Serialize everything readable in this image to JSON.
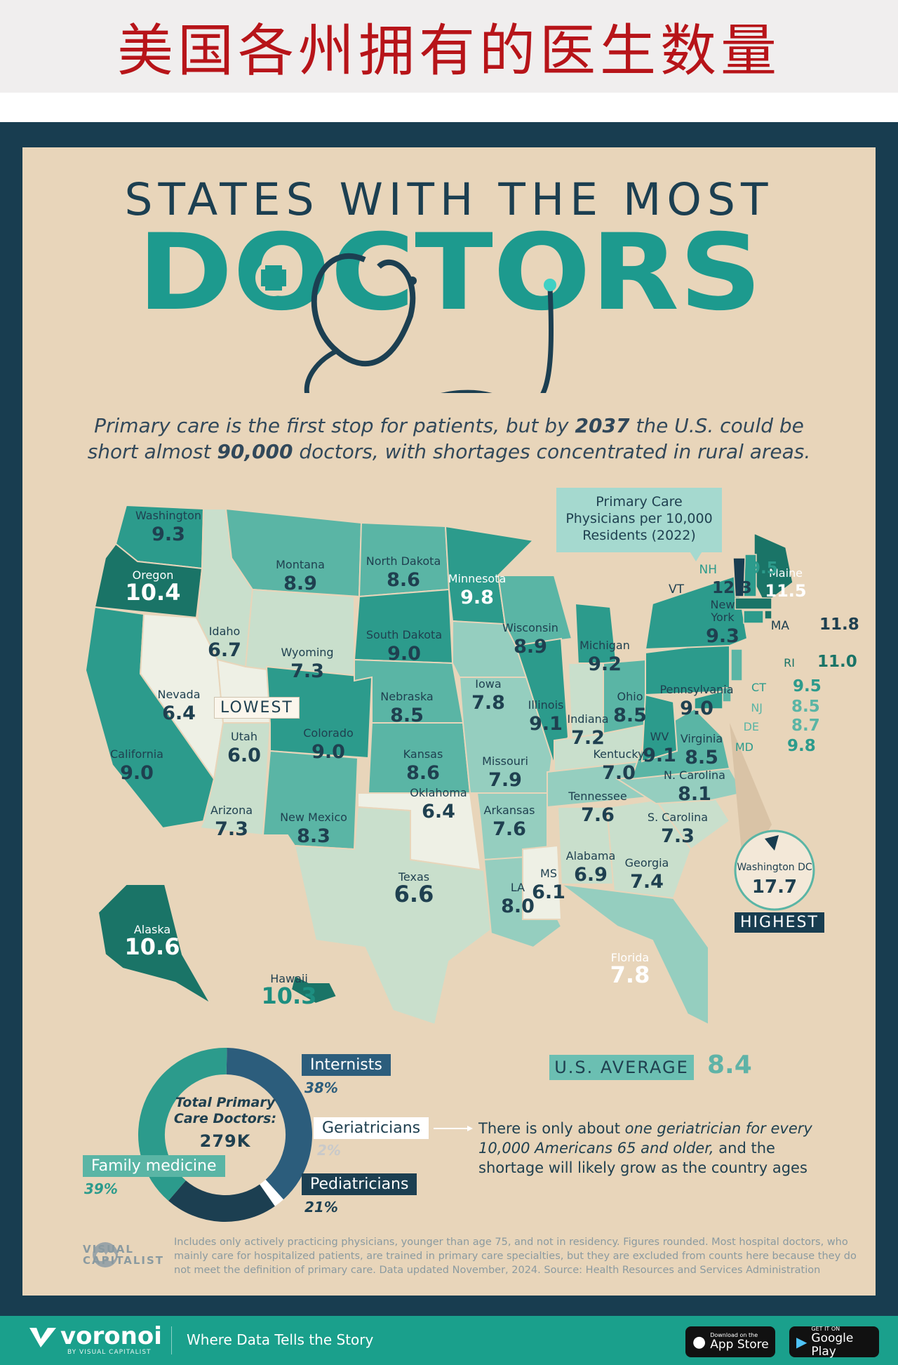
{
  "banner_title": "美国各州拥有的医生数量",
  "headline": "STATES WITH THE MOST",
  "big_word": "DOCTORS",
  "subtitle": {
    "part1": "Primary care is the first stop for patients, but by ",
    "year": "2037",
    "part2": " the U.S. could be",
    "part3": "short almost ",
    "number": "90,000",
    "part4": " doctors, with shortages concentrated in rural areas."
  },
  "legend": {
    "line1": "Primary Care",
    "line2": "Physicians per 10,000",
    "line3": "Residents (2022)"
  },
  "colors": {
    "lightest": "#eef0e5",
    "light": "#c9dfcc",
    "mid_light": "#95cebf",
    "mid": "#5ab5a5",
    "mid_dark": "#2c9b8c",
    "dark": "#1a7467",
    "darkest": "#183d50"
  },
  "states": [
    {
      "name": "Washington",
      "value": "9.3"
    },
    {
      "name": "Oregon",
      "value": "10.4"
    },
    {
      "name": "California",
      "value": "9.0"
    },
    {
      "name": "Idaho",
      "value": "6.7"
    },
    {
      "name": "Nevada",
      "value": "6.4"
    },
    {
      "name": "Utah",
      "value": "6.0"
    },
    {
      "name": "Arizona",
      "value": "7.3"
    },
    {
      "name": "Montana",
      "value": "8.9"
    },
    {
      "name": "Wyoming",
      "value": "7.3"
    },
    {
      "name": "Colorado",
      "value": "9.0"
    },
    {
      "name": "New Mexico",
      "value": "8.3"
    },
    {
      "name": "North Dakota",
      "value": "8.6"
    },
    {
      "name": "South Dakota",
      "value": "9.0"
    },
    {
      "name": "Nebraska",
      "value": "8.5"
    },
    {
      "name": "Kansas",
      "value": "8.6"
    },
    {
      "name": "Oklahoma",
      "value": "6.4"
    },
    {
      "name": "Texas",
      "value": "6.6"
    },
    {
      "name": "Minnesota",
      "value": "9.8"
    },
    {
      "name": "Iowa",
      "value": "7.8"
    },
    {
      "name": "Missouri",
      "value": "7.9"
    },
    {
      "name": "Arkansas",
      "value": "7.6"
    },
    {
      "name": "LA",
      "value": "8.0"
    },
    {
      "name": "Wisconsin",
      "value": "8.9"
    },
    {
      "name": "Illinois",
      "value": "9.1"
    },
    {
      "name": "MS",
      "value": "6.1"
    },
    {
      "name": "Michigan",
      "value": "9.2"
    },
    {
      "name": "Indiana",
      "value": "7.2"
    },
    {
      "name": "Kentucky",
      "value": "7.0"
    },
    {
      "name": "Tennessee",
      "value": "7.6"
    },
    {
      "name": "Alabama",
      "value": "6.9"
    },
    {
      "name": "Ohio",
      "value": "8.5"
    },
    {
      "name": "Georgia",
      "value": "7.4"
    },
    {
      "name": "Florida",
      "value": "7.8"
    },
    {
      "name": "S. Carolina",
      "value": "7.3"
    },
    {
      "name": "N. Carolina",
      "value": "8.1"
    },
    {
      "name": "Virginia",
      "value": "8.5"
    },
    {
      "name": "WV",
      "value": "9.1"
    },
    {
      "name": "Pennsylvania",
      "value": "9.0"
    },
    {
      "name": "New York",
      "value": "9.3"
    },
    {
      "name": "Alaska",
      "value": "10.6"
    },
    {
      "name": "Hawaii",
      "value": "10.3"
    }
  ],
  "new_york_label": {
    "line1": "New",
    "line2": "York"
  },
  "northeast": [
    {
      "abbr": "Maine",
      "value": "11.5"
    },
    {
      "abbr": "NH",
      "value": "9.5"
    },
    {
      "abbr": "VT",
      "value": "12.3"
    },
    {
      "abbr": "MA",
      "value": "11.8"
    },
    {
      "abbr": "RI",
      "value": "11.0"
    },
    {
      "abbr": "CT",
      "value": "9.5"
    },
    {
      "abbr": "NJ",
      "value": "8.5"
    },
    {
      "abbr": "DE",
      "value": "8.7"
    },
    {
      "abbr": "MD",
      "value": "9.8"
    }
  ],
  "dc": {
    "name": "Washington DC",
    "value": "17.7",
    "tag": "HIGHEST"
  },
  "lowest_tag": "LOWEST",
  "average": {
    "label": "U.S. AVERAGE",
    "value": "8.4"
  },
  "donut": {
    "center_line1": "Total Primary",
    "center_line2": "Care Doctors:",
    "total": "279K",
    "segments": [
      {
        "name": "Internists",
        "pct": "38%",
        "fraction": 0.38,
        "color": "#2c5d7c"
      },
      {
        "name": "Geriatricians",
        "pct": "2%",
        "fraction": 0.02,
        "color": "#ffffff"
      },
      {
        "name": "Pediatricians",
        "pct": "21%",
        "fraction": 0.21,
        "color": "#1c3f51"
      },
      {
        "name": "Family medicine",
        "pct": "39%",
        "fraction": 0.39,
        "color": "#2c9b8c"
      }
    ]
  },
  "geriatric_note": {
    "part1": "There is only about ",
    "emph": "one geriatrician for every 10,000 Americans 65 and older,",
    "part2": " and the shortage will likely grow as the country ages"
  },
  "footnote": "Includes only actively practicing physicians, younger than age 75, and not in residency. Figures rounded. Most hospital doctors, who mainly care for hospitalized patients, are trained in primary care specialties, but they are excluded from counts here because they do not meet the definition of primary care. Data updated November, 2024. Source: Health Resources and Services Administration",
  "brand": {
    "vc_line1": "VISUAL",
    "vc_line2": "CAPITALIST",
    "voronoi": "voronoi",
    "voronoi_sub": "BY VISUAL CAPITALIST",
    "tagline": "Where Data Tells the Story",
    "app_store_small": "Download on the",
    "app_store_big": "App Store",
    "google_small": "GET IT ON",
    "google_big": "Google Play"
  }
}
